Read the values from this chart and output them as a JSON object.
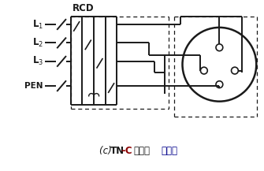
{
  "bg_color": "#ffffff",
  "line_color": "#1a1a1a",
  "lw_main": 1.4,
  "lw_dash": 0.9,
  "labels": [
    "L$_1$",
    "L$_2$",
    "L$_3$",
    "PEN"
  ],
  "label_rcd": "RCD",
  "title_c": "(c) ",
  "title_tn": "TN",
  "title_dash_c": "–C",
  "title_xitong": "系统，",
  "title_sijishi": "四极式",
  "color_black": "#1a1a1a",
  "color_darkred": "#8b0000",
  "color_darkblue": "#00008b"
}
